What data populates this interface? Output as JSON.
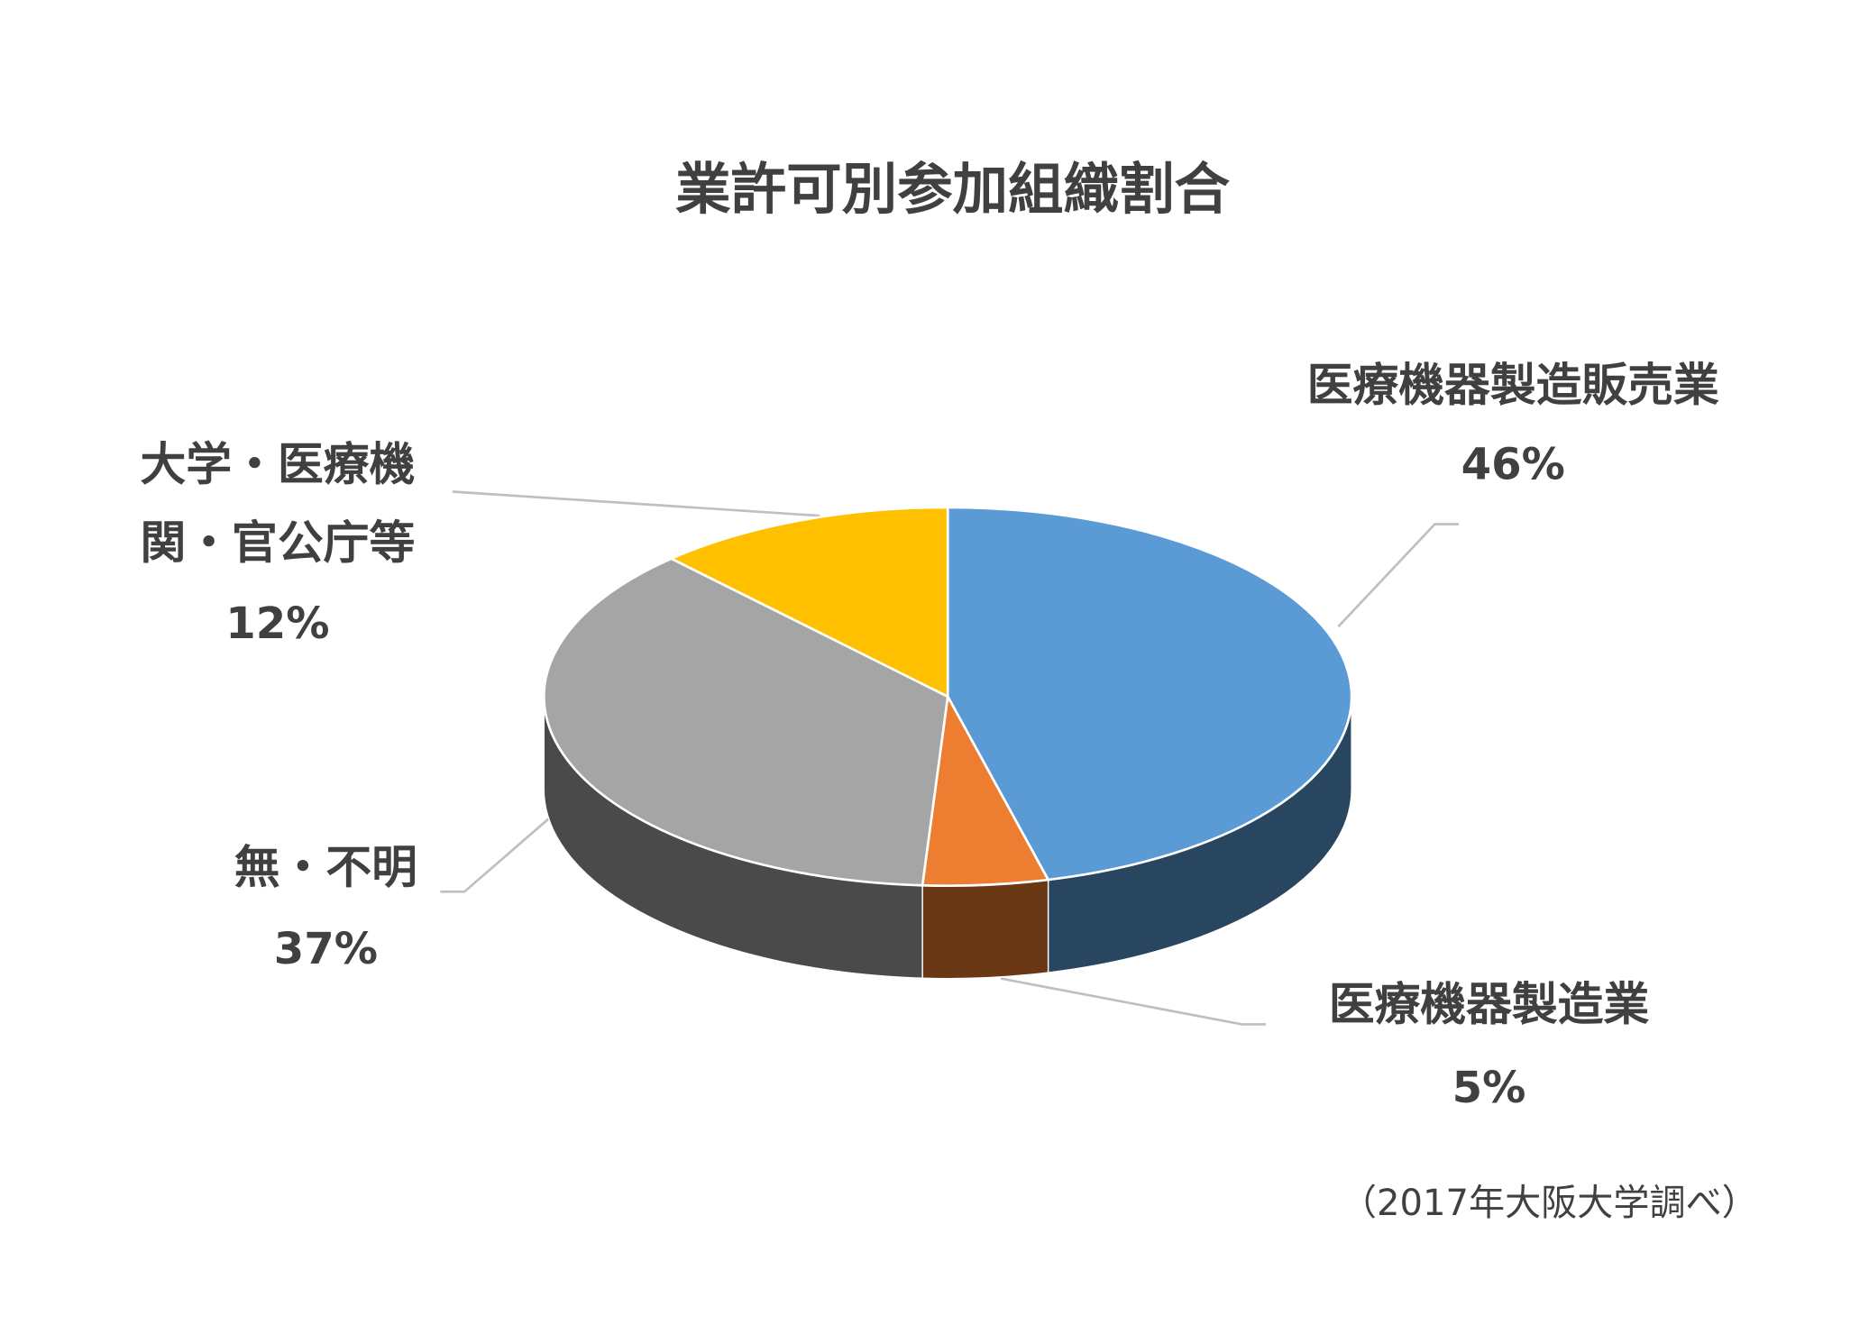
{
  "chart_data": {
    "type": "pie3d",
    "title": "業許可別参加組織割合",
    "categories": [
      "医療機器製造販売業",
      "医療機器製造業",
      "無・不明",
      "大学・医療機関・官公庁等"
    ],
    "values": [
      46,
      5,
      37,
      12
    ],
    "value_labels": [
      "46%",
      "5%",
      "37%",
      "12%"
    ],
    "colors": [
      "#5b9bd5",
      "#ed7d31",
      "#a5a5a5",
      "#ffc000"
    ],
    "note": "（2017年大阪大学調べ）"
  }
}
